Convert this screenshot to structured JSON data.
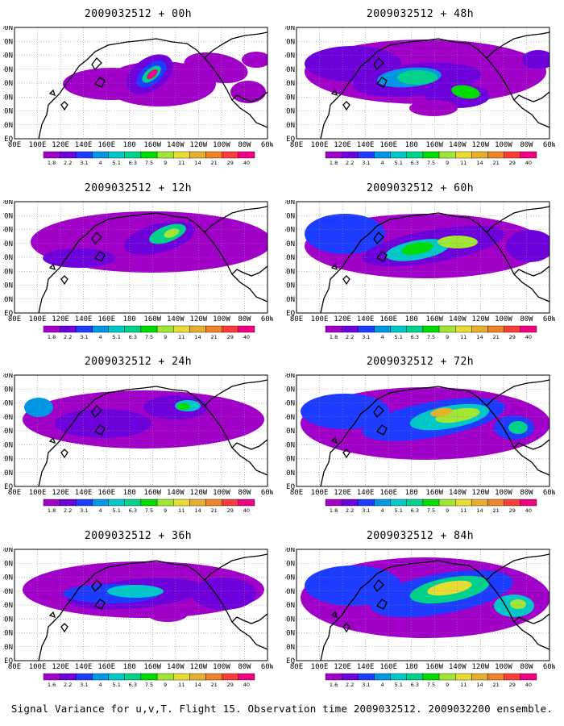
{
  "panels": [
    {
      "id": "p00",
      "title": "2009032512 + 00h"
    },
    {
      "id": "p48",
      "title": "2009032512 + 48h"
    },
    {
      "id": "p12",
      "title": "2009032512 + 12h"
    },
    {
      "id": "p60",
      "title": "2009032512 + 60h"
    },
    {
      "id": "p24",
      "title": "2009032512 + 24h"
    },
    {
      "id": "p72",
      "title": "2009032512 + 72h"
    },
    {
      "id": "p36",
      "title": "2009032512 + 36h"
    },
    {
      "id": "p84",
      "title": "2009032512 + 84h"
    }
  ],
  "x_ticks": [
    "80E",
    "100E",
    "120E",
    "140E",
    "160E",
    "180",
    "160W",
    "140W",
    "120W",
    "100W",
    "80W",
    "60W"
  ],
  "y_ticks": [
    "EQ",
    "10N",
    "20N",
    "30N",
    "40N",
    "50N",
    "60N",
    "70N",
    "80N"
  ],
  "colorbar": {
    "labels": [
      "1.8",
      "2.2",
      "3.1",
      "4",
      "5.1",
      "6.3",
      "7.5",
      "9",
      "11",
      "14",
      "21",
      "29",
      "40"
    ],
    "labels_alt": [
      "1.6",
      "2.2",
      "3.1",
      "4",
      "5.1",
      "6.3",
      "7.5",
      "9",
      "11",
      "14",
      "21",
      "29",
      "40"
    ],
    "colors": [
      "#a000c8",
      "#6e00dc",
      "#1e3cff",
      "#0096e6",
      "#00c8c8",
      "#00d28c",
      "#00dc00",
      "#a0e632",
      "#e6dc32",
      "#e6af2d",
      "#f08228",
      "#fa3c3c",
      "#f00082"
    ]
  },
  "caption": "Signal Variance for u,v,T. Flight 15. Observation time 2009032512. 2009032200 ensemble."
}
